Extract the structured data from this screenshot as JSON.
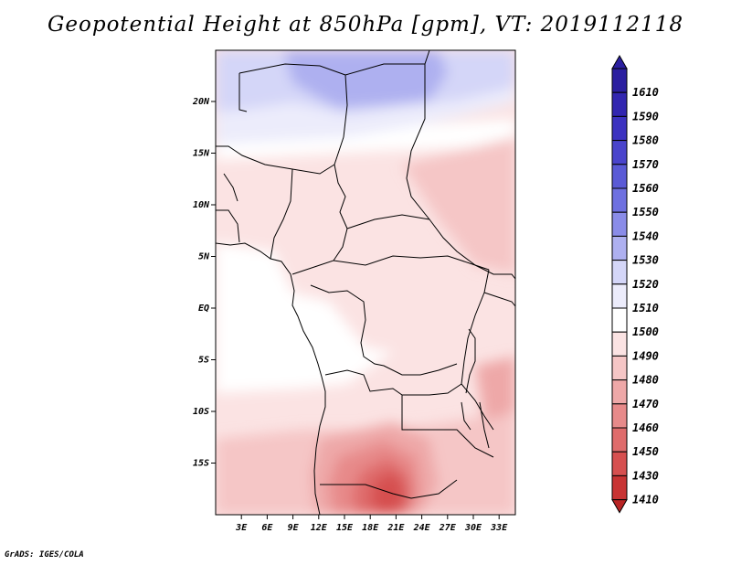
{
  "title": "Geopotential Height at 850hPa [gpm], VT: 2019112118",
  "credit": "GrADS: IGES/COLA",
  "map": {
    "lat_labels": [
      {
        "label": "20N",
        "lat": 20
      },
      {
        "label": "15N",
        "lat": 15
      },
      {
        "label": "10N",
        "lat": 10
      },
      {
        "label": "5N",
        "lat": 5
      },
      {
        "label": "EQ",
        "lat": 0
      },
      {
        "label": "5S",
        "lat": -5
      },
      {
        "label": "10S",
        "lat": -10
      },
      {
        "label": "15S",
        "lat": -15
      }
    ],
    "lon_labels": [
      {
        "label": "3E",
        "lon": 3
      },
      {
        "label": "6E",
        "lon": 6
      },
      {
        "label": "9E",
        "lon": 9
      },
      {
        "label": "12E",
        "lon": 12
      },
      {
        "label": "15E",
        "lon": 15
      },
      {
        "label": "18E",
        "lon": 18
      },
      {
        "label": "21E",
        "lon": 21
      },
      {
        "label": "24E",
        "lon": 24
      },
      {
        "label": "27E",
        "lon": 27
      },
      {
        "label": "30E",
        "lon": 30
      },
      {
        "label": "33E",
        "lon": 33
      }
    ]
  },
  "colorbar": {
    "levels": [
      {
        "label": "1610",
        "color": "#2b1fa0"
      },
      {
        "label": "1590",
        "color": "#3226b0"
      },
      {
        "label": "1580",
        "color": "#3c32c0"
      },
      {
        "label": "1570",
        "color": "#4a44cc"
      },
      {
        "label": "1560",
        "color": "#5a5ad6"
      },
      {
        "label": "1550",
        "color": "#6e70e0"
      },
      {
        "label": "1540",
        "color": "#8a8ce8"
      },
      {
        "label": "1530",
        "color": "#aeb0f0"
      },
      {
        "label": "1520",
        "color": "#d4d6f8"
      },
      {
        "label": "1510",
        "color": "#ececfb"
      },
      {
        "label": "1500",
        "color": "#ffffff"
      },
      {
        "label": "1490",
        "color": "#fbe3e3"
      },
      {
        "label": "1480",
        "color": "#f5c6c6"
      },
      {
        "label": "1470",
        "color": "#eea8a8"
      },
      {
        "label": "1460",
        "color": "#e78a8a"
      },
      {
        "label": "1450",
        "color": "#df6c6c"
      },
      {
        "label": "1430",
        "color": "#d65050"
      },
      {
        "label": "1410",
        "color": "#c83434"
      }
    ],
    "bottom_color": "#b82424"
  }
}
